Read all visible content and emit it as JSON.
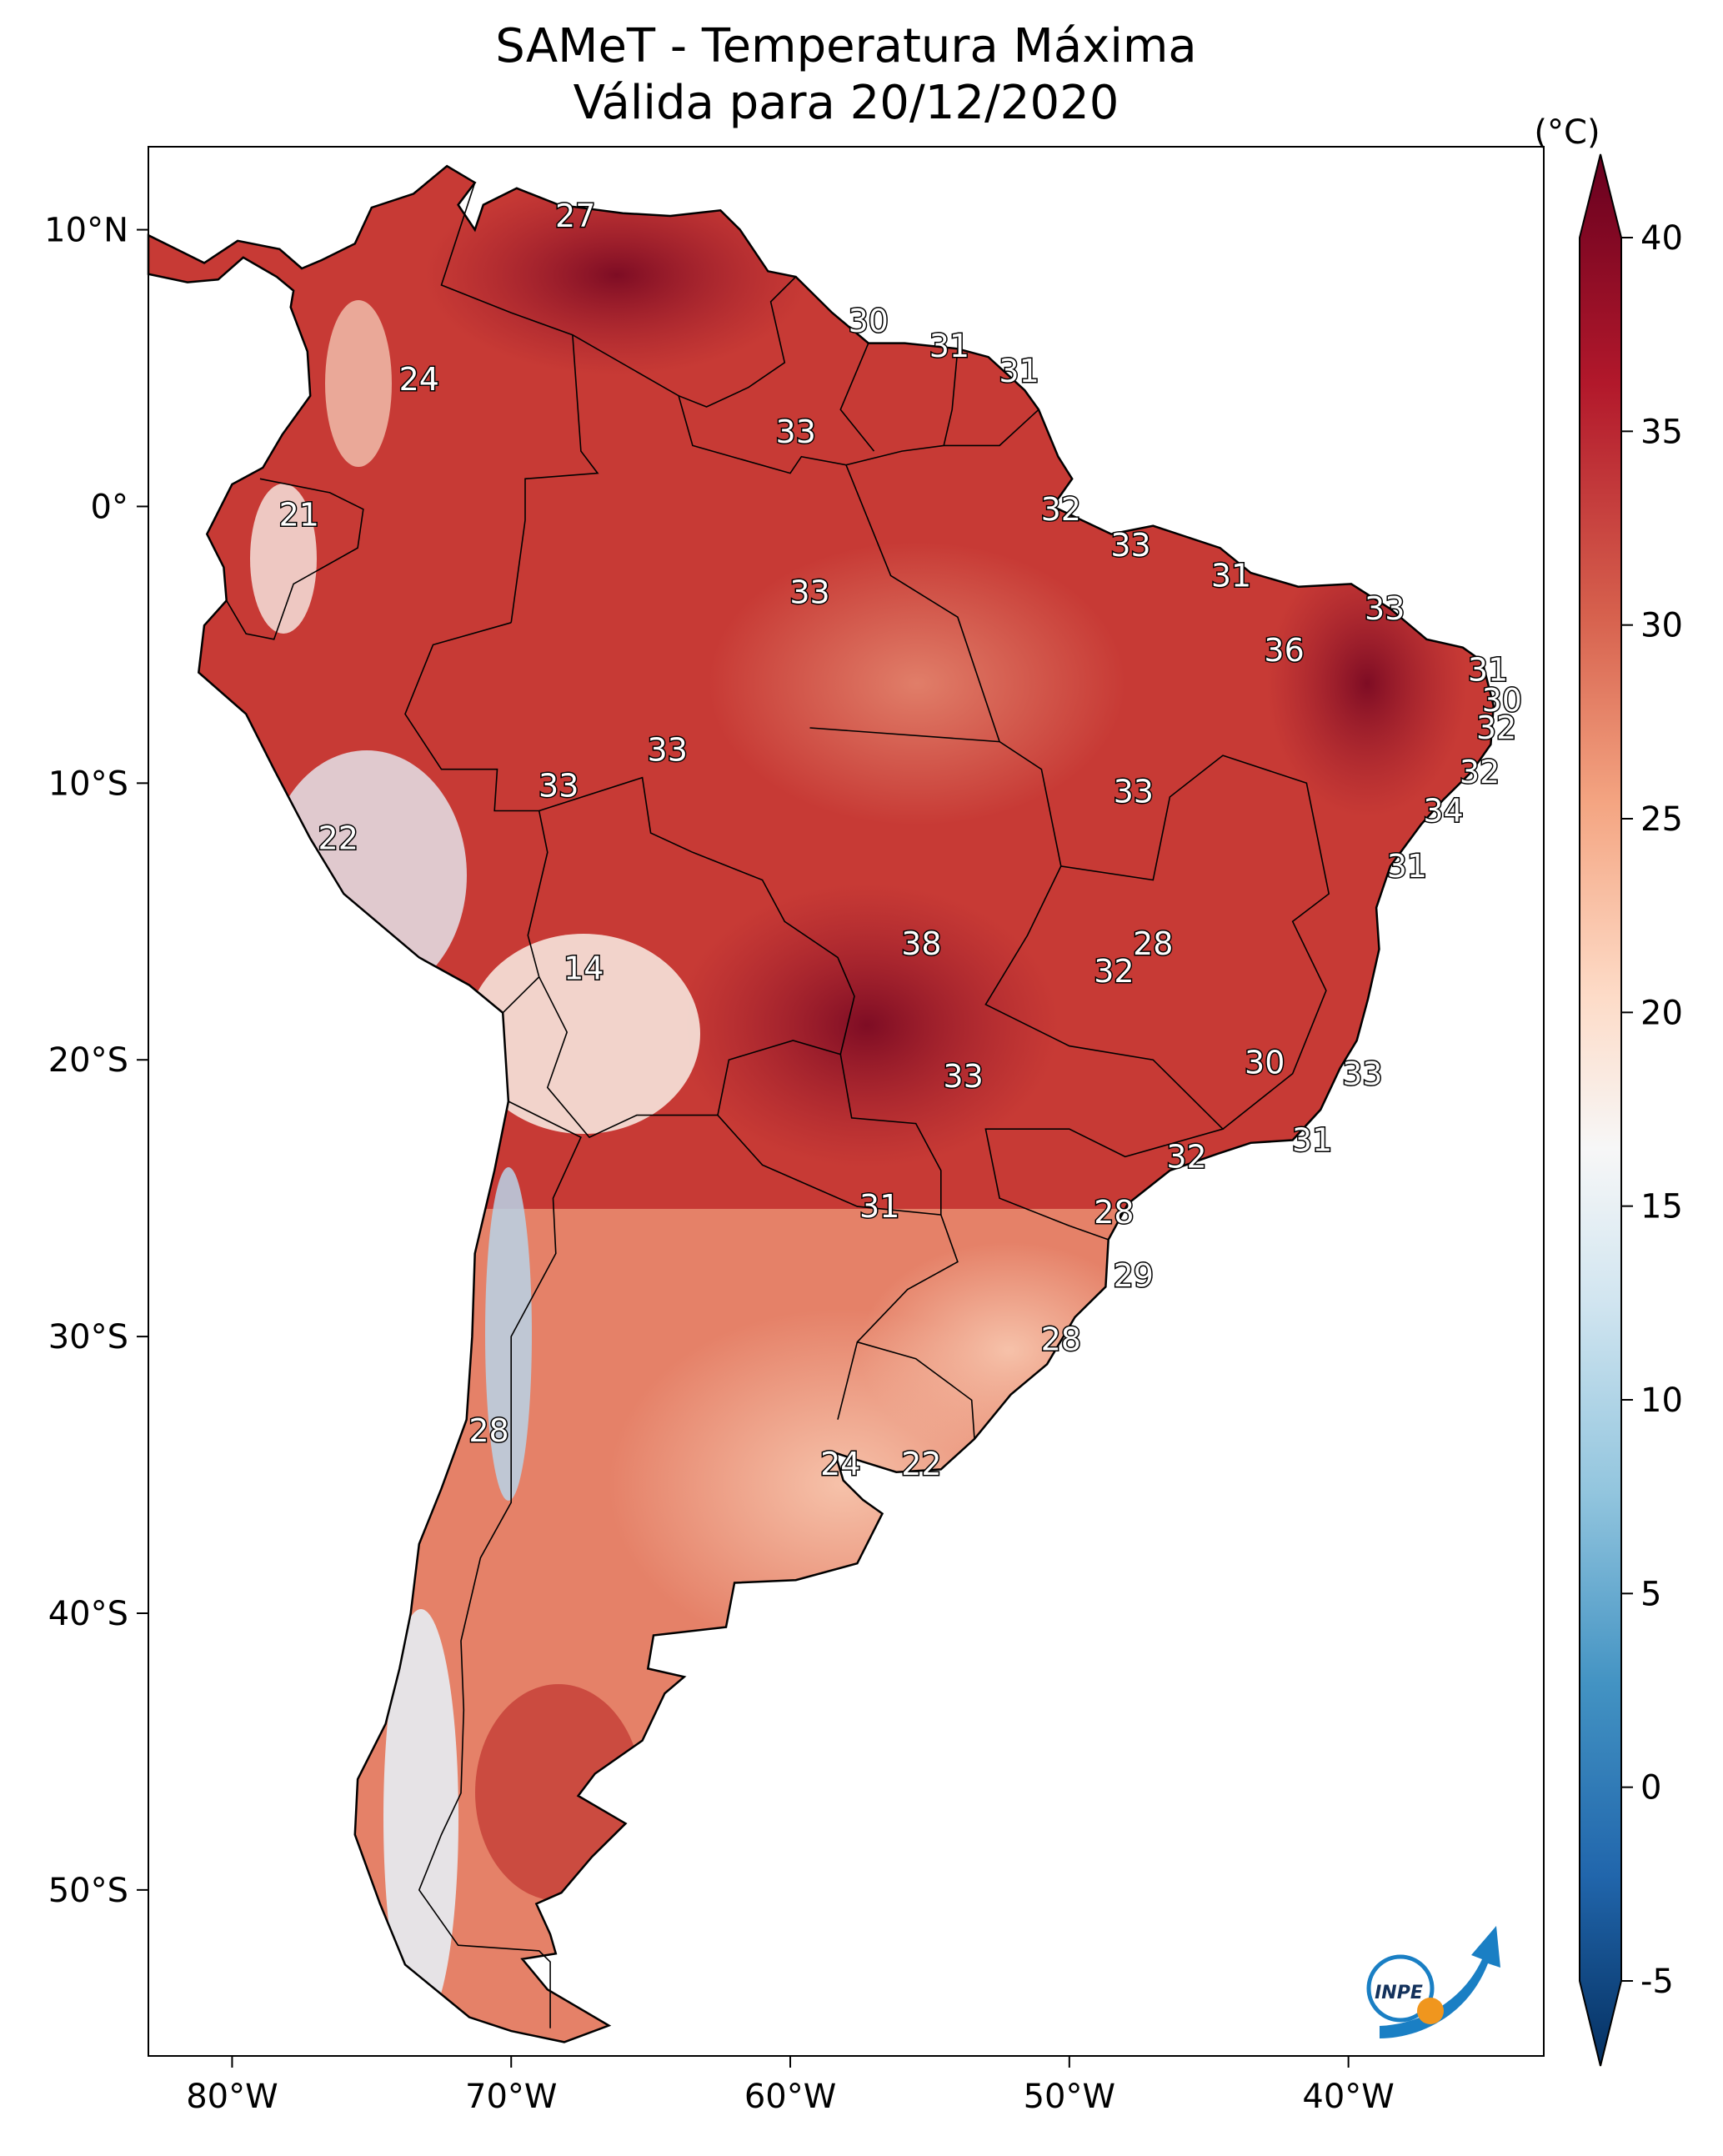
{
  "title": {
    "line1": "SAMeT - Temperatura Máxima",
    "line2": "Válida para 20/12/2020"
  },
  "map": {
    "lon_range": [
      -83,
      -33
    ],
    "lat_range": [
      -56,
      13
    ],
    "lon_ticks": [
      {
        "value": -80,
        "label": "80°W"
      },
      {
        "value": -70,
        "label": "70°W"
      },
      {
        "value": -60,
        "label": "60°W"
      },
      {
        "value": -50,
        "label": "50°W"
      },
      {
        "value": -40,
        "label": "40°W"
      }
    ],
    "lat_ticks": [
      {
        "value": 10,
        "label": "10°N"
      },
      {
        "value": 0,
        "label": "0°"
      },
      {
        "value": -10,
        "label": "10°S"
      },
      {
        "value": -20,
        "label": "20°S"
      },
      {
        "value": -30,
        "label": "30°S"
      },
      {
        "value": -40,
        "label": "40°S"
      },
      {
        "value": -50,
        "label": "50°S"
      }
    ],
    "station_labels": [
      {
        "text": "27",
        "lon": -67.7,
        "lat": 10.5
      },
      {
        "text": "30",
        "lon": -57.2,
        "lat": 6.7
      },
      {
        "text": "31",
        "lon": -54.3,
        "lat": 5.8
      },
      {
        "text": "31",
        "lon": -51.8,
        "lat": 4.9
      },
      {
        "text": "24",
        "lon": -73.3,
        "lat": 4.6
      },
      {
        "text": "33",
        "lon": -59.8,
        "lat": 2.7
      },
      {
        "text": "21",
        "lon": -77.6,
        "lat": -0.3
      },
      {
        "text": "32",
        "lon": -50.3,
        "lat": -0.1
      },
      {
        "text": "33",
        "lon": -47.8,
        "lat": -1.4
      },
      {
        "text": "31",
        "lon": -44.2,
        "lat": -2.5
      },
      {
        "text": "33",
        "lon": -59.3,
        "lat": -3.1
      },
      {
        "text": "33",
        "lon": -38.7,
        "lat": -3.7
      },
      {
        "text": "36",
        "lon": -42.3,
        "lat": -5.2
      },
      {
        "text": "31",
        "lon": -35.0,
        "lat": -5.9
      },
      {
        "text": "30",
        "lon": -34.5,
        "lat": -7.0
      },
      {
        "text": "32",
        "lon": -34.7,
        "lat": -8.0
      },
      {
        "text": "33",
        "lon": -64.4,
        "lat": -8.8
      },
      {
        "text": "32",
        "lon": -35.3,
        "lat": -9.6
      },
      {
        "text": "33",
        "lon": -68.3,
        "lat": -10.1
      },
      {
        "text": "33",
        "lon": -47.7,
        "lat": -10.3
      },
      {
        "text": "34",
        "lon": -36.6,
        "lat": -11.0
      },
      {
        "text": "22",
        "lon": -76.2,
        "lat": -12.0
      },
      {
        "text": "31",
        "lon": -37.9,
        "lat": -13.0
      },
      {
        "text": "38",
        "lon": -55.3,
        "lat": -15.8
      },
      {
        "text": "28",
        "lon": -47.0,
        "lat": -15.8
      },
      {
        "text": "14",
        "lon": -67.4,
        "lat": -16.7
      },
      {
        "text": "32",
        "lon": -48.4,
        "lat": -16.8
      },
      {
        "text": "30",
        "lon": -43.0,
        "lat": -20.1
      },
      {
        "text": "33",
        "lon": -39.5,
        "lat": -20.5
      },
      {
        "text": "33",
        "lon": -53.8,
        "lat": -20.6
      },
      {
        "text": "31",
        "lon": -41.3,
        "lat": -22.9
      },
      {
        "text": "32",
        "lon": -45.8,
        "lat": -23.5
      },
      {
        "text": "31",
        "lon": -56.8,
        "lat": -25.3
      },
      {
        "text": "28",
        "lon": -48.4,
        "lat": -25.5
      },
      {
        "text": "29",
        "lon": -47.7,
        "lat": -27.8
      },
      {
        "text": "28",
        "lon": -50.3,
        "lat": -30.1
      },
      {
        "text": "28",
        "lon": -70.8,
        "lat": -33.4
      },
      {
        "text": "24",
        "lon": -58.2,
        "lat": -34.6
      },
      {
        "text": "22",
        "lon": -55.3,
        "lat": -34.6
      }
    ]
  },
  "colorbar": {
    "unit_label": "(°C)",
    "min": -5,
    "max": 40,
    "ticks": [
      "40",
      "35",
      "30",
      "25",
      "20",
      "15",
      "10",
      "5",
      "0",
      "-5"
    ],
    "colors": [
      "#053061",
      "#2166ac",
      "#4393c3",
      "#92c5de",
      "#d1e5f0",
      "#f7f7f7",
      "#fddbc7",
      "#f4a582",
      "#d6604d",
      "#b2182b",
      "#67001f"
    ]
  },
  "logo": {
    "text": "INPE",
    "arc_color": "#1a7fc4",
    "dot_color": "#f0961e"
  }
}
